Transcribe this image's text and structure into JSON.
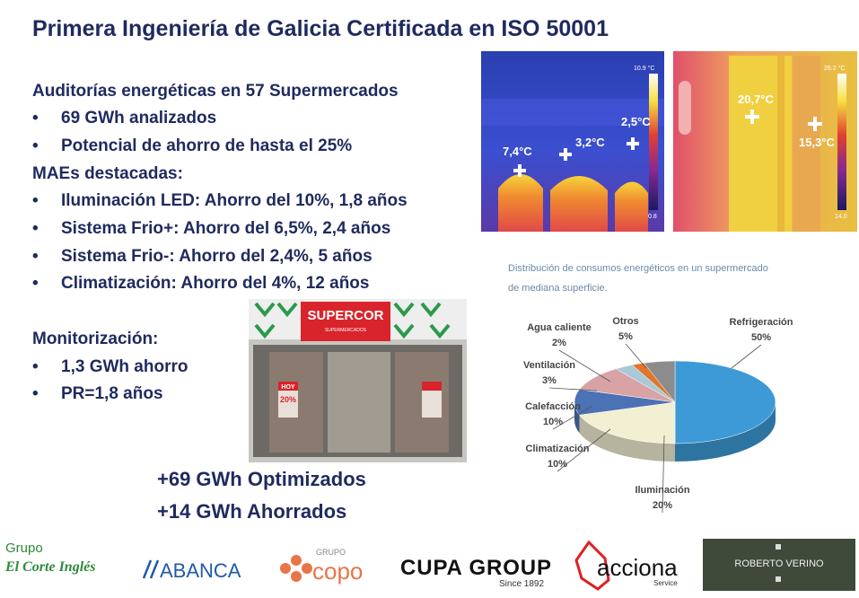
{
  "title": "Primera Ingeniería de Galicia Certificada en ISO 50001",
  "audits": {
    "heading": "Auditorías energéticas en 57 Supermercados",
    "bullets": [
      "69 GWh analizados",
      "Potencial de ahorro de hasta el 25%"
    ]
  },
  "maes": {
    "heading": "MAEs destacadas:",
    "bullets": [
      "Iluminación LED: Ahorro del 10%, 1,8 años",
      "Sistema Frio+: Ahorro del 6,5%, 2,4 años",
      "Sistema Frio-: Ahorro del 2,4%, 5 años",
      "Climatización: Ahorro del 4%, 12 años"
    ]
  },
  "monitoring": {
    "heading": "Monitorización:",
    "bullets": [
      "1,3 GWh ahorro",
      "PR=1,8 años"
    ]
  },
  "results": [
    "+69 GWh Optimizados",
    "+14 GWh Ahorrados"
  ],
  "thermal_images": [
    {
      "scale_max": "10.9 °C",
      "scale_min": "0.8",
      "points": [
        "7,4°C",
        "3,2°C",
        "2,5°C"
      ]
    },
    {
      "scale_max": "26.2 °C",
      "scale_min": "14.0",
      "points": [
        "20,7°C",
        "15,3°C"
      ]
    }
  ],
  "photo": {
    "sign": "SUPERCOR",
    "subsign": "SUPERMERCADOS",
    "poster_top": "HOY",
    "poster_value": "20%"
  },
  "pie": {
    "type": "pie",
    "title_lines": [
      "Distribución de consumos energéticos en un supermercado",
      "de mediana superficie."
    ],
    "categories": [
      "Refrigeración",
      "Iluminación",
      "Climatización",
      "Calefacción",
      "Ventilación",
      "Agua caliente",
      "Otros"
    ],
    "values": [
      50,
      20,
      10,
      10,
      3,
      2,
      5
    ],
    "value_labels": [
      "50%",
      "20%",
      "10%",
      "10%",
      "3%",
      "2%",
      "5%"
    ],
    "colors": [
      "#3d9ad6",
      "#f3efd2",
      "#4a72b4",
      "#d9a3a6",
      "#a9c9d6",
      "#e0762c",
      "#8c8c8c"
    ]
  },
  "logos": {
    "corte_ingles": [
      "Grupo",
      "El Corte Inglés"
    ],
    "abanca": "ABANCA",
    "copo": [
      "GRUPO",
      "copo"
    ],
    "cupa": [
      "CUPA GROUP",
      "Since 1892"
    ],
    "acciona": [
      "acciona",
      "Service"
    ],
    "verino": "ROBERTO VERINO"
  }
}
